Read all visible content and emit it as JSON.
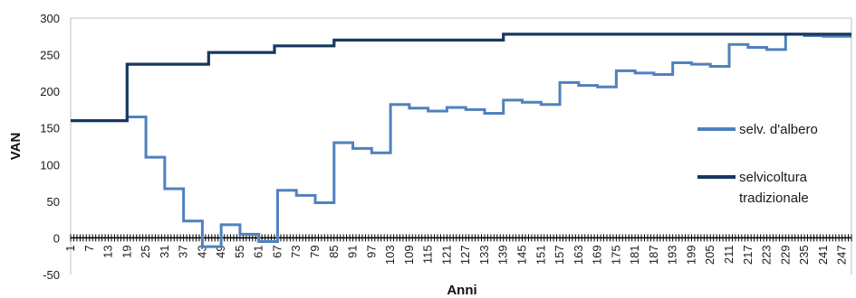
{
  "chart_data": {
    "type": "line",
    "title": "",
    "xlabel": "Anni",
    "ylabel": "VAN",
    "xlim": [
      1,
      250
    ],
    "ylim": [
      -50,
      300
    ],
    "yticks": [
      -50,
      0,
      50,
      100,
      150,
      200,
      250,
      300
    ],
    "xticks": [
      1,
      7,
      13,
      19,
      25,
      31,
      37,
      43,
      49,
      55,
      61,
      67,
      73,
      79,
      85,
      91,
      97,
      103,
      109,
      115,
      121,
      127,
      133,
      139,
      145,
      151,
      157,
      163,
      169,
      175,
      181,
      187,
      193,
      199,
      205,
      211,
      217,
      223,
      229,
      235,
      241,
      247
    ],
    "xtick_labels": [
      "1",
      "7",
      "13",
      "19",
      "25",
      "31",
      "37",
      "43",
      "49",
      "55",
      "61",
      "67",
      "73",
      "79",
      "85",
      "91",
      "97",
      "103",
      "109",
      "115",
      "121",
      "127",
      "133",
      "139",
      "145",
      "151",
      "157",
      "163",
      "169",
      "175",
      "181",
      "187",
      "193",
      "199",
      "205",
      "211",
      "217",
      "223",
      "229",
      "235",
      "241",
      "247"
    ],
    "grid": false,
    "legend_position": "right",
    "series": [
      {
        "name": "selv. d'albero",
        "color": "#4f81bd",
        "step": true,
        "x": [
          1,
          19,
          25,
          31,
          37,
          43,
          49,
          55,
          61,
          67,
          73,
          79,
          85,
          91,
          97,
          103,
          109,
          115,
          121,
          127,
          133,
          139,
          145,
          151,
          157,
          163,
          169,
          175,
          181,
          187,
          193,
          199,
          205,
          211,
          217,
          223,
          229,
          235,
          241,
          250
        ],
        "y": [
          160,
          165,
          110,
          67,
          23,
          -12,
          18,
          5,
          -5,
          65,
          58,
          48,
          130,
          122,
          116,
          182,
          177,
          173,
          178,
          175,
          170,
          188,
          185,
          182,
          212,
          208,
          206,
          228,
          225,
          223,
          239,
          237,
          234,
          264,
          260,
          257,
          278,
          276,
          275,
          275
        ]
      },
      {
        "name": "selvicoltura tradizionale",
        "color": "#17375e",
        "step": true,
        "x": [
          1,
          19,
          45,
          66,
          85,
          139,
          250
        ],
        "y": [
          160,
          237,
          253,
          262,
          270,
          278,
          278
        ]
      }
    ]
  },
  "legend": {
    "items": [
      {
        "lines": [
          "selv. d'albero"
        ],
        "color": "#4f81bd"
      },
      {
        "lines": [
          "selvicoltura",
          "tradizionale"
        ],
        "color": "#17375e"
      }
    ]
  }
}
